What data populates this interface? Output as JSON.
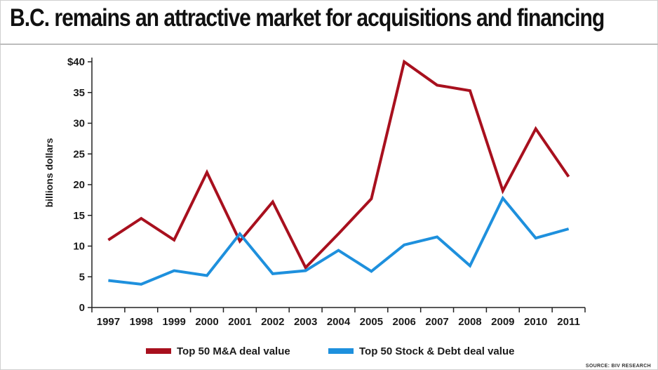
{
  "title": "B.C. remains an attractive market for acquisitions and financing",
  "source": "SOURCE: BIV RESEARCH",
  "chart_data": {
    "type": "line",
    "title": "B.C. remains an attractive market for acquisitions and financing",
    "ylabel": "billions dollars",
    "xlabel": "",
    "ylim": [
      0,
      40
    ],
    "y_ticks": [
      0,
      5,
      10,
      15,
      20,
      25,
      30,
      35,
      40
    ],
    "y_tick_labels": [
      "0",
      "5",
      "10",
      "15",
      "20",
      "25",
      "30",
      "35",
      "$40"
    ],
    "grid": false,
    "legend_position": "bottom",
    "categories": [
      "1997",
      "1998",
      "1999",
      "2000",
      "2001",
      "2002",
      "2003",
      "2004",
      "2005",
      "2006",
      "2007",
      "2008",
      "2009",
      "2010",
      "2011"
    ],
    "series": [
      {
        "name": "Top 50 M&A deal value",
        "color": "#a8101e",
        "values": [
          11.0,
          14.5,
          11.0,
          22.0,
          10.8,
          17.2,
          6.5,
          12.0,
          17.7,
          40.0,
          36.2,
          35.3,
          19.0,
          29.1,
          21.3
        ]
      },
      {
        "name": "Top 50 Stock & Debt deal value",
        "color": "#1e90dd",
        "values": [
          4.4,
          3.8,
          6.0,
          5.2,
          12.0,
          5.5,
          6.0,
          9.3,
          5.9,
          10.2,
          11.5,
          6.8,
          17.8,
          11.3,
          12.8
        ]
      }
    ]
  }
}
